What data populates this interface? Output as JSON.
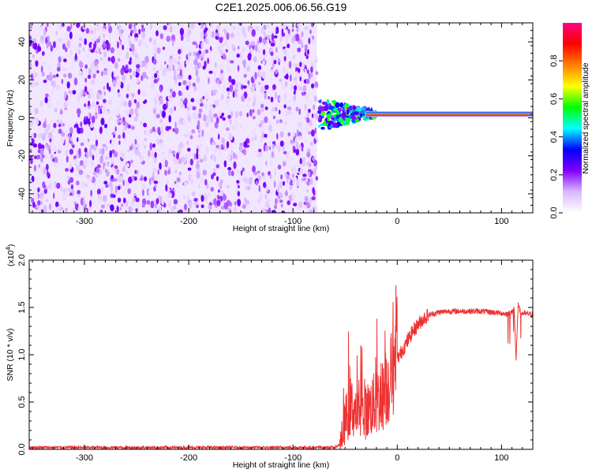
{
  "title": "C2E1.2025.006.06.56.G19",
  "chart_data": [
    {
      "type": "heatmap",
      "xlabel": "Height of straight line (km)",
      "ylabel": "Frequency (Hz)",
      "xlim": [
        -353,
        130
      ],
      "ylim": [
        -50,
        50
      ],
      "xticks": [
        -300,
        -200,
        -100,
        0,
        100
      ],
      "xtick_labels": [
        "-300",
        "-200",
        "-100",
        "0",
        "100"
      ],
      "yticks": [
        -40,
        -20,
        0,
        20,
        40
      ],
      "ytick_labels": [
        "-40",
        "-20",
        "0",
        "20",
        "40"
      ],
      "noise_region_x": [
        -353,
        -77
      ],
      "signal_line_frequency": 2,
      "colorbar": {
        "label": "Normalized spectral amplitude",
        "range": [
          0,
          1
        ],
        "ticks": [
          0.0,
          0.2,
          0.4,
          0.6,
          0.8
        ],
        "tick_labels": [
          "0.0",
          "0.2",
          "0.4",
          "0.6",
          "0.8"
        ],
        "colormap": [
          "#ffffff",
          "#d9b8ff",
          "#8000ff",
          "#0000ff",
          "#00ffff",
          "#00ff00",
          "#ffff00",
          "#ff8000",
          "#ff0000",
          "#ff0080"
        ]
      }
    },
    {
      "type": "line",
      "xlabel": "Height of straight line (km)",
      "ylabel": "SNR (10 * v/v)",
      "y_multiplier_label": "(x10",
      "y_multiplier_exp": "4",
      "y_multiplier_close": ")",
      "xlim": [
        -353,
        130
      ],
      "ylim": [
        0,
        2.0
      ],
      "xticks": [
        -300,
        -200,
        -100,
        0,
        100
      ],
      "xtick_labels": [
        "-300",
        "-200",
        "-100",
        "0",
        "100"
      ],
      "yticks": [
        0.0,
        0.5,
        1.0,
        1.5,
        2.0
      ],
      "ytick_labels": [
        "0.0",
        "0.5",
        "1.0",
        "1.5",
        "2.0"
      ],
      "color": "#ee3333",
      "x": [
        -353,
        -300,
        -200,
        -100,
        -60,
        -55,
        -50,
        -45,
        -40,
        -35,
        -30,
        -25,
        -20,
        -15,
        -10,
        -5,
        0,
        5,
        10,
        15,
        20,
        25,
        30,
        40,
        50,
        60,
        70,
        80,
        90,
        100,
        105,
        110,
        112,
        114,
        116,
        118,
        120,
        125,
        130
      ],
      "y": [
        0.02,
        0.02,
        0.02,
        0.02,
        0.02,
        0.05,
        0.3,
        0.45,
        0.4,
        0.35,
        0.4,
        0.45,
        0.5,
        0.55,
        0.65,
        0.8,
        0.95,
        1.05,
        1.15,
        1.25,
        1.32,
        1.38,
        1.42,
        1.45,
        1.46,
        1.46,
        1.46,
        1.46,
        1.45,
        1.44,
        1.43,
        1.45,
        1.5,
        0.95,
        1.55,
        1.45,
        1.44,
        1.43,
        1.43
      ]
    }
  ]
}
